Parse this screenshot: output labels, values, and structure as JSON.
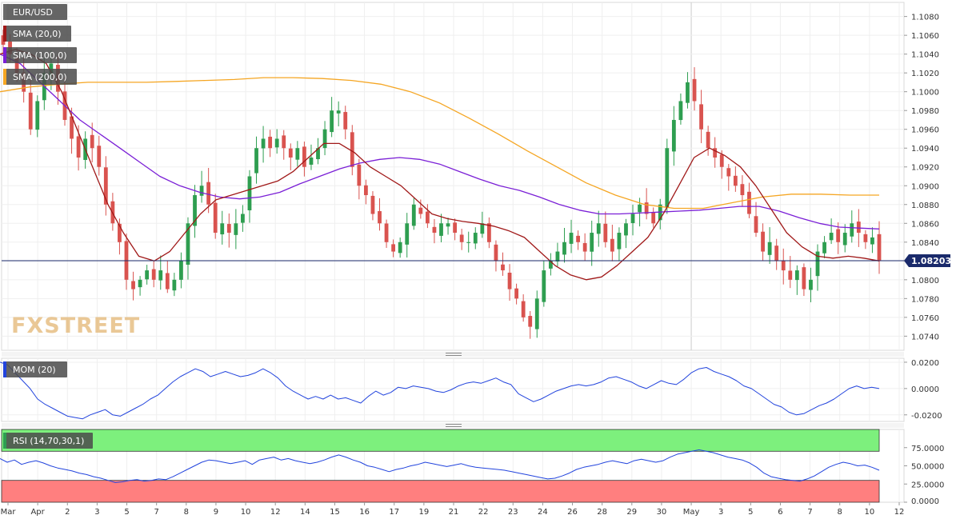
{
  "instrument": "EUR/USD",
  "watermark": "FXSTREET",
  "legends": {
    "sma20": "SMA (20,0)",
    "sma100": "SMA (100,0)",
    "sma200": "SMA (200,0)",
    "mom": "MOM (20)",
    "rsi": "RSI (14,70,30,1)"
  },
  "colors": {
    "up": "#2e9e50",
    "down": "#d9534f",
    "sma20": "#a01818",
    "sma100": "#7a1fd6",
    "sma200": "#f5a623",
    "mom": "#2244dd",
    "rsi": "#2244dd",
    "rsi_overbought": "#7df07d",
    "rsi_oversold": "#ff7f7f",
    "price_line": "#1a2a6b"
  },
  "chart_data": [
    {
      "type": "candlestick",
      "panel": "price",
      "ylim": [
        1.0725,
        1.1095
      ],
      "y_ticks": [
        "1.0740",
        "1.0760",
        "1.0780",
        "1.0800",
        "1.0820",
        "1.0840",
        "1.0860",
        "1.0880",
        "1.0900",
        "1.0920",
        "1.0940",
        "1.0960",
        "1.0980",
        "1.1000",
        "1.1020",
        "1.1040",
        "1.1060",
        "1.1080"
      ],
      "x_labels": [
        "Mar",
        "Apr",
        "2",
        "3",
        "5",
        "7",
        "8",
        "9",
        "10",
        "12",
        "14",
        "15",
        "16",
        "17",
        "19",
        "21",
        "22",
        "23",
        "24",
        "26",
        "28",
        "29",
        "30",
        "May",
        "3",
        "5",
        "6",
        "7",
        "8",
        "10",
        "12"
      ],
      "current_price_label": "1.08203",
      "current_price": 1.08203,
      "close_path": [
        1.105,
        1.104,
        1.102,
        1.1,
        1.096,
        1.099,
        1.102,
        1.103,
        1.1,
        1.097,
        1.095,
        1.093,
        1.095,
        1.094,
        1.092,
        1.088,
        1.086,
        1.084,
        1.08,
        1.079,
        1.08,
        1.081,
        1.08,
        1.081,
        1.079,
        1.08,
        1.082,
        1.086,
        1.089,
        1.09,
        1.088,
        1.085,
        1.086,
        1.085,
        1.086,
        1.087,
        1.091,
        1.094,
        1.095,
        1.094,
        1.095,
        1.094,
        1.093,
        1.094,
        1.092,
        1.093,
        1.094,
        1.096,
        1.098,
        1.098,
        1.096,
        1.092,
        1.09,
        1.089,
        1.087,
        1.086,
        1.084,
        1.083,
        1.084,
        1.086,
        1.088,
        1.087,
        1.086,
        1.085,
        1.086,
        1.086,
        1.085,
        1.084,
        1.084,
        1.085,
        1.086,
        1.084,
        1.082,
        1.081,
        1.079,
        1.078,
        1.076,
        1.075,
        1.078,
        1.081,
        1.082,
        1.083,
        1.084,
        1.085,
        1.084,
        1.083,
        1.085,
        1.086,
        1.084,
        1.083,
        1.085,
        1.086,
        1.087,
        1.088,
        1.087,
        1.086,
        1.088,
        1.094,
        1.097,
        1.099,
        1.101,
        1.099,
        1.096,
        1.094,
        1.093,
        1.092,
        1.091,
        1.09,
        1.089,
        1.087,
        1.085,
        1.083,
        1.084,
        1.082,
        1.081,
        1.08,
        1.081,
        1.079,
        1.08,
        1.083,
        1.084,
        1.085,
        1.084,
        1.085,
        1.086,
        1.085,
        1.084,
        1.0845,
        1.082
      ],
      "sma20": [
        1.104,
        1.1045,
        1.104,
        1.103,
        1.1,
        1.096,
        1.092,
        1.088,
        1.085,
        1.0825,
        1.082,
        1.083,
        1.085,
        1.087,
        1.0885,
        1.089,
        1.0895,
        1.09,
        1.0905,
        1.0915,
        1.093,
        1.0945,
        1.0945,
        1.0935,
        1.092,
        1.091,
        1.09,
        1.0885,
        1.087,
        1.0865,
        1.0862,
        1.086,
        1.0857,
        1.0852,
        1.0845,
        1.083,
        1.0815,
        1.0805,
        1.08,
        1.0803,
        1.0815,
        1.083,
        1.0845,
        1.087,
        1.09,
        1.093,
        1.094,
        1.0932,
        1.092,
        1.09,
        1.0875,
        1.085,
        1.0835,
        1.0825,
        1.0823,
        1.0825,
        1.0823,
        1.082
      ],
      "sma100": [
        1.104,
        1.103,
        1.101,
        1.099,
        1.097,
        1.0955,
        1.094,
        1.0925,
        1.091,
        1.09,
        1.0893,
        1.0888,
        1.0886,
        1.0888,
        1.0893,
        1.0902,
        1.091,
        1.0918,
        1.0924,
        1.0928,
        1.093,
        1.0928,
        1.0923,
        1.0915,
        1.0907,
        1.09,
        1.0895,
        1.0888,
        1.088,
        1.0874,
        1.087,
        1.087,
        1.0871,
        1.0872,
        1.0873,
        1.0874,
        1.0876,
        1.0878,
        1.0878,
        1.0873,
        1.0866,
        1.086,
        1.0856,
        1.0855,
        1.0854
      ],
      "sma200": [
        1.1,
        1.1005,
        1.1008,
        1.101,
        1.101,
        1.101,
        1.1011,
        1.1012,
        1.1013,
        1.1015,
        1.1015,
        1.1014,
        1.1012,
        1.1008,
        1.1,
        1.0988,
        1.0972,
        1.0955,
        1.0937,
        1.092,
        1.0903,
        1.089,
        1.088,
        1.0876,
        1.0876,
        1.0882,
        1.0888,
        1.0891,
        1.0891,
        1.089,
        1.089
      ]
    },
    {
      "type": "line",
      "panel": "momentum",
      "title": "MOM (20)",
      "ylim": [
        -0.025,
        0.023
      ],
      "y_ticks": [
        "0.0200",
        "0.0000",
        "-0.0200"
      ],
      "values": [
        0.02,
        0.018,
        0.012,
        0.006,
        0.0,
        -0.008,
        -0.012,
        -0.015,
        -0.018,
        -0.021,
        -0.022,
        -0.023,
        -0.02,
        -0.018,
        -0.016,
        -0.02,
        -0.021,
        -0.018,
        -0.015,
        -0.012,
        -0.008,
        -0.005,
        0.0,
        0.005,
        0.009,
        0.012,
        0.015,
        0.013,
        0.009,
        0.011,
        0.013,
        0.011,
        0.009,
        0.01,
        0.012,
        0.015,
        0.012,
        0.008,
        0.002,
        -0.002,
        -0.005,
        -0.008,
        -0.006,
        -0.008,
        -0.005,
        -0.008,
        -0.007,
        -0.009,
        -0.011,
        -0.006,
        -0.002,
        -0.005,
        -0.003,
        0.001,
        0.0,
        0.002,
        0.001,
        0.0,
        -0.002,
        -0.003,
        -0.001,
        0.002,
        0.004,
        0.005,
        0.004,
        0.006,
        0.008,
        0.005,
        0.003,
        -0.004,
        -0.007,
        -0.01,
        -0.008,
        -0.005,
        -0.002,
        0.0,
        0.002,
        0.003,
        0.002,
        0.003,
        0.005,
        0.008,
        0.009,
        0.007,
        0.005,
        0.002,
        0.0,
        0.003,
        0.006,
        0.004,
        0.003,
        0.007,
        0.012,
        0.015,
        0.016,
        0.013,
        0.011,
        0.009,
        0.006,
        0.002,
        0.0,
        -0.004,
        -0.008,
        -0.012,
        -0.014,
        -0.018,
        -0.02,
        -0.019,
        -0.016,
        -0.013,
        -0.011,
        -0.008,
        -0.004,
        0.0,
        0.002,
        0.0,
        0.001,
        0.0
      ]
    },
    {
      "type": "line",
      "panel": "rsi",
      "title": "RSI (14,70,30,1)",
      "ylim": [
        0,
        100
      ],
      "y_ticks": [
        "75.0000",
        "50.0000",
        "25.0000",
        "0.0000"
      ],
      "overbought": 70,
      "oversold": 30,
      "values": [
        60,
        55,
        58,
        52,
        55,
        57,
        54,
        50,
        47,
        45,
        43,
        40,
        38,
        35,
        33,
        30,
        27,
        28,
        30,
        31,
        29,
        30,
        32,
        31,
        35,
        40,
        45,
        50,
        55,
        58,
        57,
        55,
        53,
        55,
        57,
        52,
        58,
        60,
        62,
        58,
        60,
        57,
        55,
        53,
        55,
        58,
        62,
        65,
        62,
        58,
        55,
        50,
        48,
        45,
        42,
        45,
        47,
        50,
        52,
        55,
        53,
        51,
        49,
        51,
        53,
        50,
        48,
        47,
        46,
        45,
        44,
        42,
        40,
        38,
        36,
        34,
        32,
        33,
        36,
        40,
        45,
        48,
        50,
        52,
        55,
        57,
        55,
        53,
        57,
        59,
        57,
        55,
        57,
        62,
        66,
        68,
        70,
        72,
        70,
        68,
        65,
        62,
        60,
        58,
        54,
        48,
        40,
        35,
        33,
        31,
        30,
        29,
        32,
        36,
        42,
        48,
        52,
        55,
        53,
        50,
        51,
        48,
        44
      ]
    }
  ]
}
